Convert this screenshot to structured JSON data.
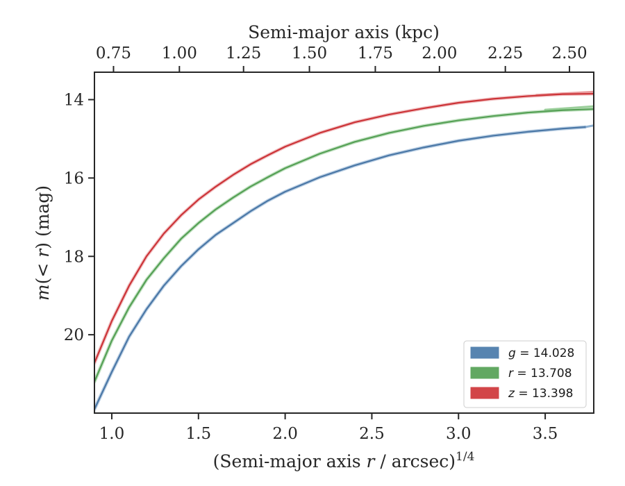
{
  "chart_data": {
    "type": "line",
    "title": "",
    "xlabel": {
      "prefix": "(Semi-major axis ",
      "var": "r",
      "suffix": " / arcsec)",
      "power": "1/4"
    },
    "ylabel": {
      "var": "m",
      "inner": "(< ",
      "var2": "r",
      "close": ")",
      "unit": " (mag)"
    },
    "top_xlabel": "Semi-major axis (kpc)",
    "xlim": [
      0.9,
      3.78
    ],
    "ylim": [
      22.0,
      13.3
    ],
    "y_inverted": true,
    "x_ticks": [
      1.0,
      1.5,
      2.0,
      2.5,
      3.0,
      3.5
    ],
    "x_tick_labels": [
      "1.0",
      "1.5",
      "2.0",
      "2.5",
      "3.0",
      "3.5"
    ],
    "y_ticks": [
      14,
      16,
      18,
      20
    ],
    "y_tick_labels": [
      "14",
      "16",
      "18",
      "20"
    ],
    "top_ticks": [
      0.75,
      1.0,
      1.25,
      1.5,
      1.75,
      2.0,
      2.25,
      2.5
    ],
    "top_tick_labels": [
      "0.75",
      "1.00",
      "1.25",
      "1.50",
      "1.75",
      "2.00",
      "2.25",
      "2.50"
    ],
    "top_tick_positions": [
      1.01,
      1.39,
      1.76,
      2.14,
      2.52,
      2.89,
      3.27,
      3.64
    ],
    "grid": false,
    "legend_placement": "lower-right",
    "legend": [
      {
        "var": "g",
        "text": " = 14.028",
        "color": "#5784b0"
      },
      {
        "var": "r",
        "text": " = 13.708",
        "color": "#62a862"
      },
      {
        "var": "z",
        "text": " = 13.398",
        "color": "#d24548"
      }
    ],
    "series": [
      {
        "color": "#4a77a6",
        "band_color": "#8fb1d2",
        "x": [
          0.9,
          1.0,
          1.1,
          1.2,
          1.3,
          1.4,
          1.5,
          1.6,
          1.7,
          1.8,
          1.9,
          2.0,
          2.2,
          2.4,
          2.6,
          2.8,
          3.0,
          3.2,
          3.4,
          3.6,
          3.73
        ],
        "y": [
          21.9,
          20.95,
          20.05,
          19.35,
          18.75,
          18.25,
          17.82,
          17.45,
          17.15,
          16.85,
          16.58,
          16.35,
          15.98,
          15.68,
          15.42,
          15.22,
          15.05,
          14.92,
          14.82,
          14.74,
          14.7
        ],
        "band_x": [
          3.73,
          3.78
        ],
        "band_y": [
          14.7,
          14.66
        ]
      },
      {
        "color": "#55a055",
        "band_color": "#9bcf9b",
        "x": [
          0.9,
          1.0,
          1.1,
          1.2,
          1.3,
          1.4,
          1.5,
          1.6,
          1.7,
          1.8,
          1.9,
          2.0,
          2.2,
          2.4,
          2.6,
          2.8,
          3.0,
          3.2,
          3.4,
          3.6,
          3.78
        ],
        "y": [
          21.2,
          20.15,
          19.3,
          18.6,
          18.05,
          17.55,
          17.15,
          16.8,
          16.5,
          16.22,
          15.98,
          15.75,
          15.38,
          15.08,
          14.85,
          14.67,
          14.53,
          14.42,
          14.33,
          14.27,
          14.24
        ],
        "band_x": [
          3.5,
          3.78
        ],
        "band_y": [
          14.26,
          14.17
        ]
      },
      {
        "color": "#cc3337",
        "band_color": "#e89a9c",
        "x": [
          0.9,
          1.0,
          1.1,
          1.2,
          1.3,
          1.4,
          1.5,
          1.6,
          1.7,
          1.8,
          1.9,
          2.0,
          2.2,
          2.4,
          2.6,
          2.8,
          3.0,
          3.2,
          3.4,
          3.6,
          3.78
        ],
        "y": [
          20.72,
          19.65,
          18.75,
          18.0,
          17.42,
          16.95,
          16.55,
          16.22,
          15.92,
          15.65,
          15.42,
          15.2,
          14.85,
          14.58,
          14.38,
          14.22,
          14.08,
          13.98,
          13.91,
          13.86,
          13.85
        ],
        "band_x": [
          3.45,
          3.78
        ],
        "band_y": [
          13.88,
          13.8
        ]
      }
    ]
  }
}
